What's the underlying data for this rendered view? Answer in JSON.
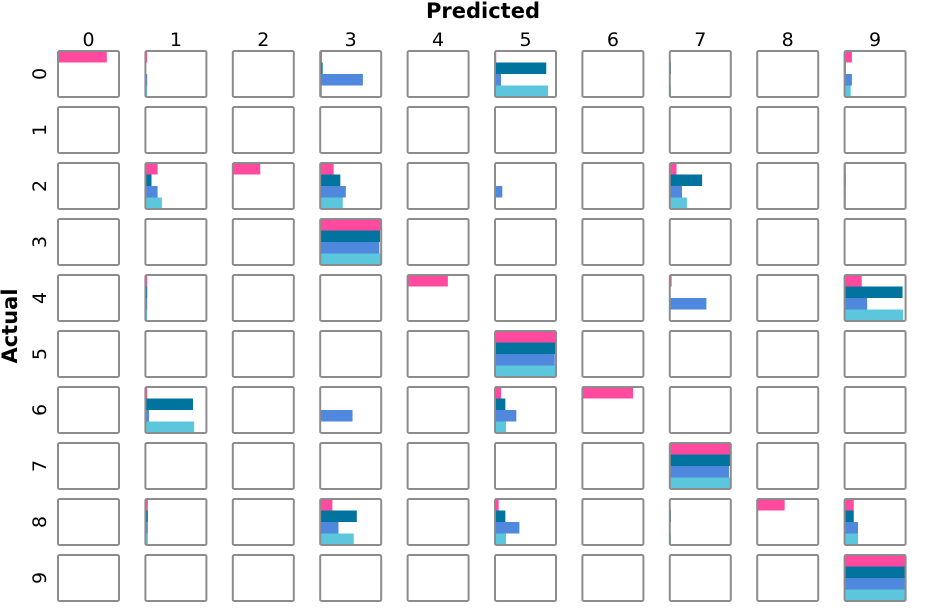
{
  "chart_data": {
    "type": "heatmap",
    "subtype": "confusion-matrix-of-bar-glyphs",
    "xlabel": "Predicted",
    "ylabel": "Actual",
    "x_ticks": [
      "0",
      "1",
      "2",
      "3",
      "4",
      "5",
      "6",
      "7",
      "8",
      "9"
    ],
    "y_ticks": [
      "0",
      "1",
      "2",
      "3",
      "4",
      "5",
      "6",
      "7",
      "8",
      "9"
    ],
    "bar_max": 1.0,
    "series_colors": [
      "#ff4aa0",
      "#00739e",
      "#4f88dd",
      "#5bc6dc"
    ],
    "cells": [
      [
        [
          0.8,
          0,
          0,
          0
        ],
        [
          0.03,
          0,
          0.03,
          0.03
        ],
        [
          0,
          0,
          0,
          0
        ],
        [
          0.03,
          0.04,
          0.7,
          0.03
        ],
        [
          0,
          0,
          0,
          0
        ],
        [
          0.02,
          0.84,
          0.1,
          0.87
        ],
        [
          0,
          0,
          0,
          0
        ],
        [
          0,
          0.02,
          0,
          0.02
        ],
        [
          0,
          0,
          0,
          0
        ],
        [
          0.12,
          0.02,
          0.12,
          0.1
        ]
      ],
      [
        [
          0,
          0,
          0,
          0
        ],
        [
          0,
          0,
          0,
          0
        ],
        [
          0,
          0,
          0,
          0
        ],
        [
          0,
          0,
          0,
          0
        ],
        [
          0,
          0,
          0,
          0
        ],
        [
          0,
          0,
          0,
          0
        ],
        [
          0,
          0,
          0,
          0
        ],
        [
          0,
          0,
          0,
          0
        ],
        [
          0,
          0,
          0,
          0
        ],
        [
          0,
          0,
          0,
          0
        ]
      ],
      [
        [
          0,
          0,
          0,
          0
        ],
        [
          0.2,
          0.1,
          0.2,
          0.27
        ],
        [
          0.45,
          0,
          0,
          0
        ],
        [
          0.22,
          0.33,
          0.42,
          0.37
        ],
        [
          0,
          0,
          0,
          0
        ],
        [
          0,
          0,
          0.12,
          0
        ],
        [
          0,
          0,
          0,
          0
        ],
        [
          0.11,
          0.53,
          0.2,
          0.28
        ],
        [
          0,
          0,
          0,
          0
        ],
        [
          0.02,
          0.02,
          0.02,
          0.02
        ]
      ],
      [
        [
          0,
          0,
          0,
          0
        ],
        [
          0,
          0,
          0,
          0
        ],
        [
          0,
          0,
          0,
          0
        ],
        [
          1.0,
          0.98,
          0.97,
          0.99
        ],
        [
          0,
          0,
          0,
          0
        ],
        [
          0,
          0,
          0,
          0
        ],
        [
          0,
          0,
          0,
          0
        ],
        [
          0,
          0,
          0,
          0
        ],
        [
          0,
          0,
          0,
          0
        ],
        [
          0,
          0,
          0,
          0
        ]
      ],
      [
        [
          0,
          0,
          0,
          0
        ],
        [
          0.03,
          0.03,
          0.03,
          0.03
        ],
        [
          0,
          0,
          0,
          0
        ],
        [
          0,
          0,
          0,
          0
        ],
        [
          0.66,
          0,
          0,
          0
        ],
        [
          0,
          0,
          0,
          0
        ],
        [
          0,
          0,
          0,
          0
        ],
        [
          0.03,
          0,
          0.6,
          0
        ],
        [
          0,
          0,
          0,
          0
        ],
        [
          0.28,
          0.95,
          0.37,
          0.96
        ]
      ],
      [
        [
          0,
          0,
          0,
          0
        ],
        [
          0,
          0,
          0,
          0
        ],
        [
          0,
          0,
          0,
          0
        ],
        [
          0,
          0,
          0,
          0
        ],
        [
          0,
          0,
          0,
          0
        ],
        [
          1.0,
          0.99,
          0.98,
          0.99
        ],
        [
          0,
          0,
          0,
          0
        ],
        [
          0,
          0,
          0,
          0
        ],
        [
          0,
          0,
          0,
          0
        ],
        [
          0,
          0,
          0,
          0
        ]
      ],
      [
        [
          0,
          0,
          0,
          0
        ],
        [
          0.03,
          0.78,
          0.06,
          0.8
        ],
        [
          0,
          0,
          0,
          0
        ],
        [
          0,
          0,
          0.53,
          0
        ],
        [
          0,
          0,
          0,
          0
        ],
        [
          0.1,
          0.17,
          0.35,
          0.18
        ],
        [
          0.83,
          0,
          0,
          0
        ],
        [
          0,
          0,
          0,
          0
        ],
        [
          0,
          0,
          0,
          0
        ],
        [
          0,
          0,
          0,
          0
        ]
      ],
      [
        [
          0,
          0,
          0,
          0
        ],
        [
          0,
          0,
          0,
          0
        ],
        [
          0,
          0,
          0,
          0
        ],
        [
          0,
          0,
          0,
          0
        ],
        [
          0,
          0,
          0,
          0
        ],
        [
          0,
          0,
          0,
          0
        ],
        [
          0,
          0,
          0,
          0
        ],
        [
          1.0,
          0.99,
          0.97,
          0.99
        ],
        [
          0,
          0,
          0,
          0
        ],
        [
          0,
          0,
          0,
          0
        ]
      ],
      [
        [
          0,
          0,
          0,
          0
        ],
        [
          0.04,
          0.04,
          0.04,
          0.04
        ],
        [
          0,
          0,
          0,
          0
        ],
        [
          0.2,
          0.6,
          0.3,
          0.55
        ],
        [
          0,
          0,
          0,
          0
        ],
        [
          0.06,
          0.17,
          0.4,
          0.18
        ],
        [
          0,
          0,
          0,
          0
        ],
        [
          0,
          0.02,
          0,
          0.02
        ],
        [
          0.45,
          0,
          0,
          0
        ],
        [
          0.15,
          0.15,
          0.22,
          0.22
        ]
      ],
      [
        [
          0,
          0,
          0,
          0
        ],
        [
          0,
          0,
          0,
          0
        ],
        [
          0,
          0,
          0,
          0
        ],
        [
          0,
          0,
          0,
          0
        ],
        [
          0,
          0,
          0,
          0
        ],
        [
          0,
          0,
          0,
          0
        ],
        [
          0,
          0,
          0,
          0
        ],
        [
          0,
          0,
          0,
          0
        ],
        [
          0,
          0,
          0,
          0
        ],
        [
          1.0,
          0.99,
          0.99,
          0.99
        ]
      ]
    ],
    "grid": false,
    "legend": "none"
  }
}
